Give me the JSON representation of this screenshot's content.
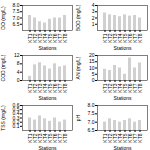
{
  "chart_data": [
    {
      "type": "bar",
      "categories": [
        "KT1",
        "KT2",
        "KT3",
        "KT4",
        "KT5",
        "KT6",
        "KT7",
        "KT8"
      ],
      "values": [
        7.2,
        7.0,
        6.7,
        6.6,
        6.9,
        7.0,
        7.0,
        7.2
      ],
      "color": "#d0d0d0",
      "xlabel": "Stations",
      "ylabel": "DO (mg/L)",
      "ylim": [
        6.0,
        8.0
      ],
      "yticks": [
        6.5,
        {
          "value": 7.0,
          "label": "7.0"
        },
        7.5,
        {
          "value": 8.0,
          "label": "8.0"
        }
      ]
    },
    {
      "type": "bar",
      "categories": [
        "KT1",
        "KT2",
        "KT3",
        "KT4",
        "KT5",
        "KT6",
        "KT7",
        "KT8"
      ],
      "values": [
        2.8,
        2.5,
        2.4,
        2.2,
        2.5,
        2.3,
        2.4,
        2.0
      ],
      "color": "#d0d0d0",
      "xlabel": "Stations",
      "ylabel": "BOD (mg/L)",
      "ylim": [
        0,
        4.0
      ],
      "yticks": [
        1,
        2,
        3,
        4
      ]
    },
    {
      "type": "bar",
      "categories": [
        "KT1",
        "KT2",
        "KT3",
        "KT4",
        "KT5",
        "KT6",
        "KT7",
        "KT8"
      ],
      "values": [
        2.0,
        7.5,
        8.5,
        7.0,
        5.5,
        8.0,
        6.5,
        7.0
      ],
      "color": "#d0d0d0",
      "xlabel": "Stations",
      "ylabel": "COD (mg/L)",
      "ylim": [
        0,
        12
      ],
      "yticks": [
        0,
        4,
        8,
        12
      ]
    },
    {
      "type": "bar",
      "categories": [
        "KT1",
        "KT2",
        "KT3",
        "KT4",
        "KT5",
        "KT6",
        "KT7",
        "KT8"
      ],
      "values": [
        9.0,
        8.0,
        12.0,
        10.0,
        5.0,
        18.0,
        10.0,
        14.0
      ],
      "color": "#d0d0d0",
      "xlabel": "Stations",
      "ylabel": "AN (mg/L)",
      "ylim": [
        0,
        20
      ],
      "yticks": [
        0,
        5,
        10,
        15,
        20
      ]
    },
    {
      "type": "bar",
      "categories": [
        "KT1",
        "KT2",
        "KT3",
        "KT4",
        "KT5",
        "KT6",
        "KT7",
        "KT8"
      ],
      "values": [
        0.3,
        0.25,
        0.35,
        0.28,
        0.22,
        0.3,
        0.2,
        0.25
      ],
      "color": "#d0d0d0",
      "xlabel": "Stations",
      "ylabel": "TSS (mg/L)",
      "ylim": [
        0.0,
        0.6
      ],
      "yticks": [
        0.1,
        0.2,
        0.3,
        0.4,
        0.5,
        0.6
      ]
    },
    {
      "type": "bar",
      "categories": [
        "KT1",
        "KT2",
        "KT3",
        "KT4",
        "KT5",
        "KT6",
        "KT7",
        "KT8"
      ],
      "values": [
        7.0,
        7.2,
        7.1,
        7.0,
        7.1,
        7.2,
        7.0,
        7.1
      ],
      "color": "#d0d0d0",
      "xlabel": "Stations",
      "ylabel": "pH",
      "ylim": [
        6.5,
        8.0
      ],
      "yticks": [
        6.5,
        {
          "value": 7.0,
          "label": "7.0"
        },
        7.5,
        {
          "value": 8.0,
          "label": "8.0"
        }
      ]
    }
  ]
}
